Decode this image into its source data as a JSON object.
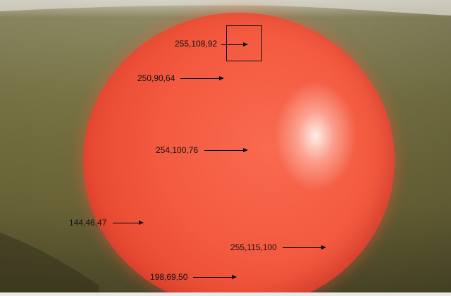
{
  "annotations": [
    {
      "id": "top",
      "label": "255,108,92"
    },
    {
      "id": "upper-left",
      "label": "250,90,64"
    },
    {
      "id": "center",
      "label": "254,100,76"
    },
    {
      "id": "background-left",
      "label": "144,46,47"
    },
    {
      "id": "lower-right",
      "label": "255,115,100"
    },
    {
      "id": "bottom",
      "label": "198,69,50"
    }
  ],
  "colors": {
    "ball": "#f35a40",
    "background": "#6f6a3c",
    "highlight": "#fff4ef"
  }
}
